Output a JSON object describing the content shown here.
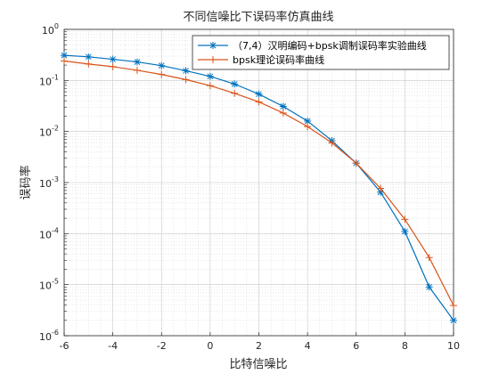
{
  "chart_data": {
    "type": "line",
    "title": "不同信噪比下误码率仿真曲线",
    "xlabel": "比特信噪比",
    "ylabel": "误码率",
    "xlim": [
      -6,
      10
    ],
    "ylim": [
      1e-06,
      1
    ],
    "yscale": "log",
    "grid": true,
    "minor_grid": true,
    "legend_position": "top-right",
    "x_ticks": [
      -6,
      -4,
      -2,
      0,
      2,
      4,
      6,
      8,
      10
    ],
    "y_ticks": [
      {
        "value": 1,
        "base": "10",
        "exp": "0"
      },
      {
        "value": 0.1,
        "base": "10",
        "exp": "-1"
      },
      {
        "value": 0.01,
        "base": "10",
        "exp": "-2"
      },
      {
        "value": 0.001,
        "base": "10",
        "exp": "-3"
      },
      {
        "value": 0.0001,
        "base": "10",
        "exp": "-4"
      },
      {
        "value": 1e-05,
        "base": "10",
        "exp": "-5"
      },
      {
        "value": 1e-06,
        "base": "10",
        "exp": "-6"
      }
    ],
    "x": [
      -6,
      -5,
      -4,
      -3,
      -2,
      -1,
      0,
      1,
      2,
      3,
      4,
      5,
      6,
      7,
      8,
      9,
      10
    ],
    "series": [
      {
        "name": "（7,4）汉明编码+bpsk调制误码率实验曲线",
        "color": "#0072BD",
        "marker": "asterisk",
        "values": [
          0.31,
          0.29,
          0.26,
          0.23,
          0.195,
          0.155,
          0.12,
          0.085,
          0.054,
          0.031,
          0.016,
          0.0066,
          0.0024,
          0.00065,
          0.00011,
          9e-06,
          2e-06
        ]
      },
      {
        "name": "bpsk理论误码率曲线",
        "color": "#D95319",
        "marker": "plus",
        "values": [
          0.24,
          0.21,
          0.186,
          0.158,
          0.131,
          0.104,
          0.079,
          0.056,
          0.038,
          0.023,
          0.0125,
          0.006,
          0.0024,
          0.00077,
          0.00019,
          3.4e-05,
          3.9e-06
        ]
      }
    ]
  }
}
